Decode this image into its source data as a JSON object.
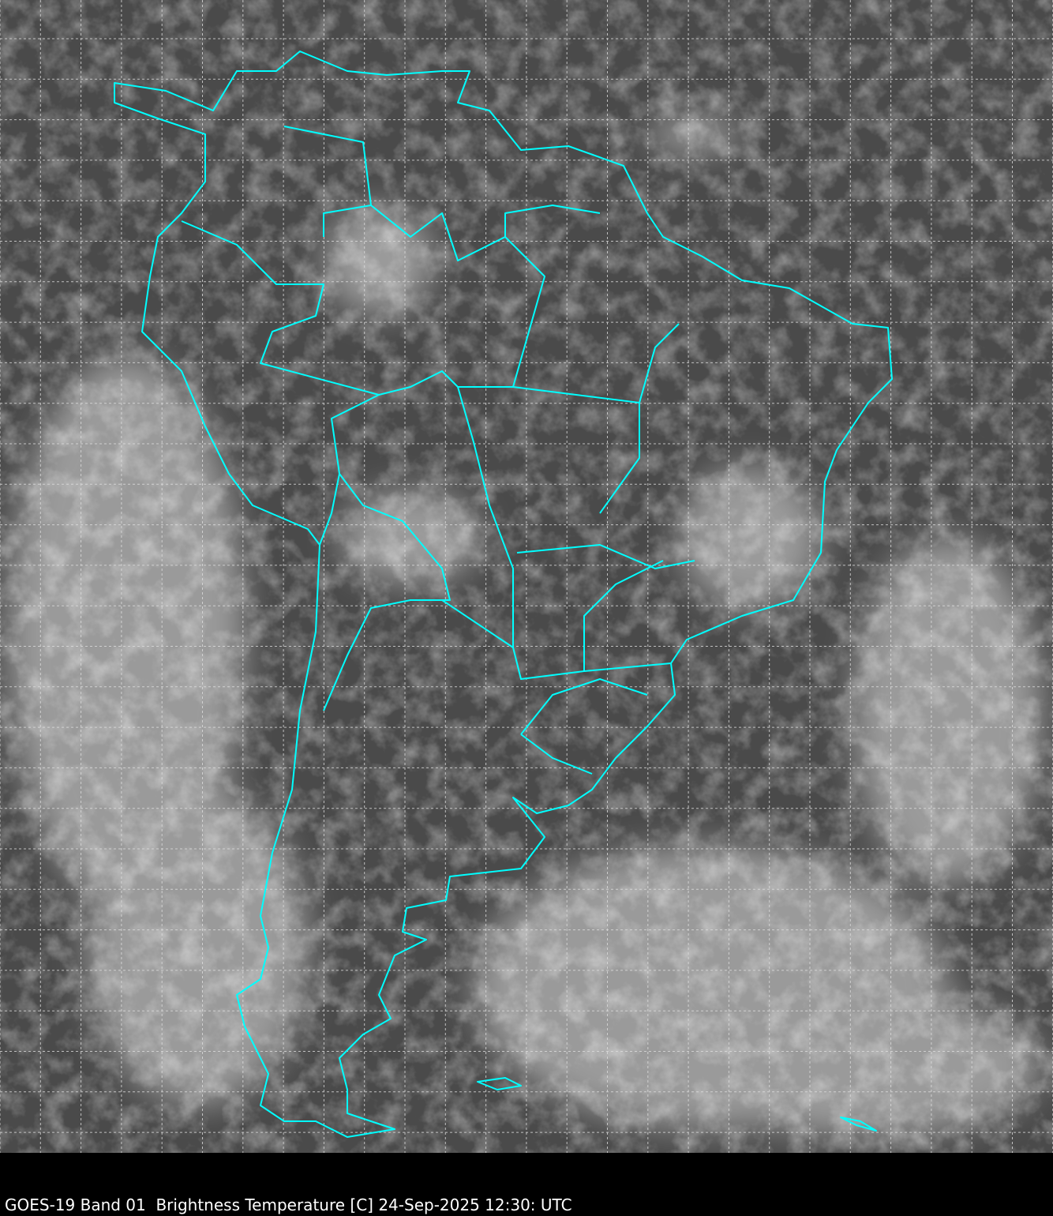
{
  "caption": "GOES-19 Band 01  Brightness Temperature [C] 24-Sep-2025 12:30: UTC",
  "colors": {
    "border": "#00ffff",
    "grid": "#dddddd",
    "background": "#000000"
  },
  "map": {
    "region": "South America",
    "grid": true,
    "grid_style": "dashed"
  }
}
